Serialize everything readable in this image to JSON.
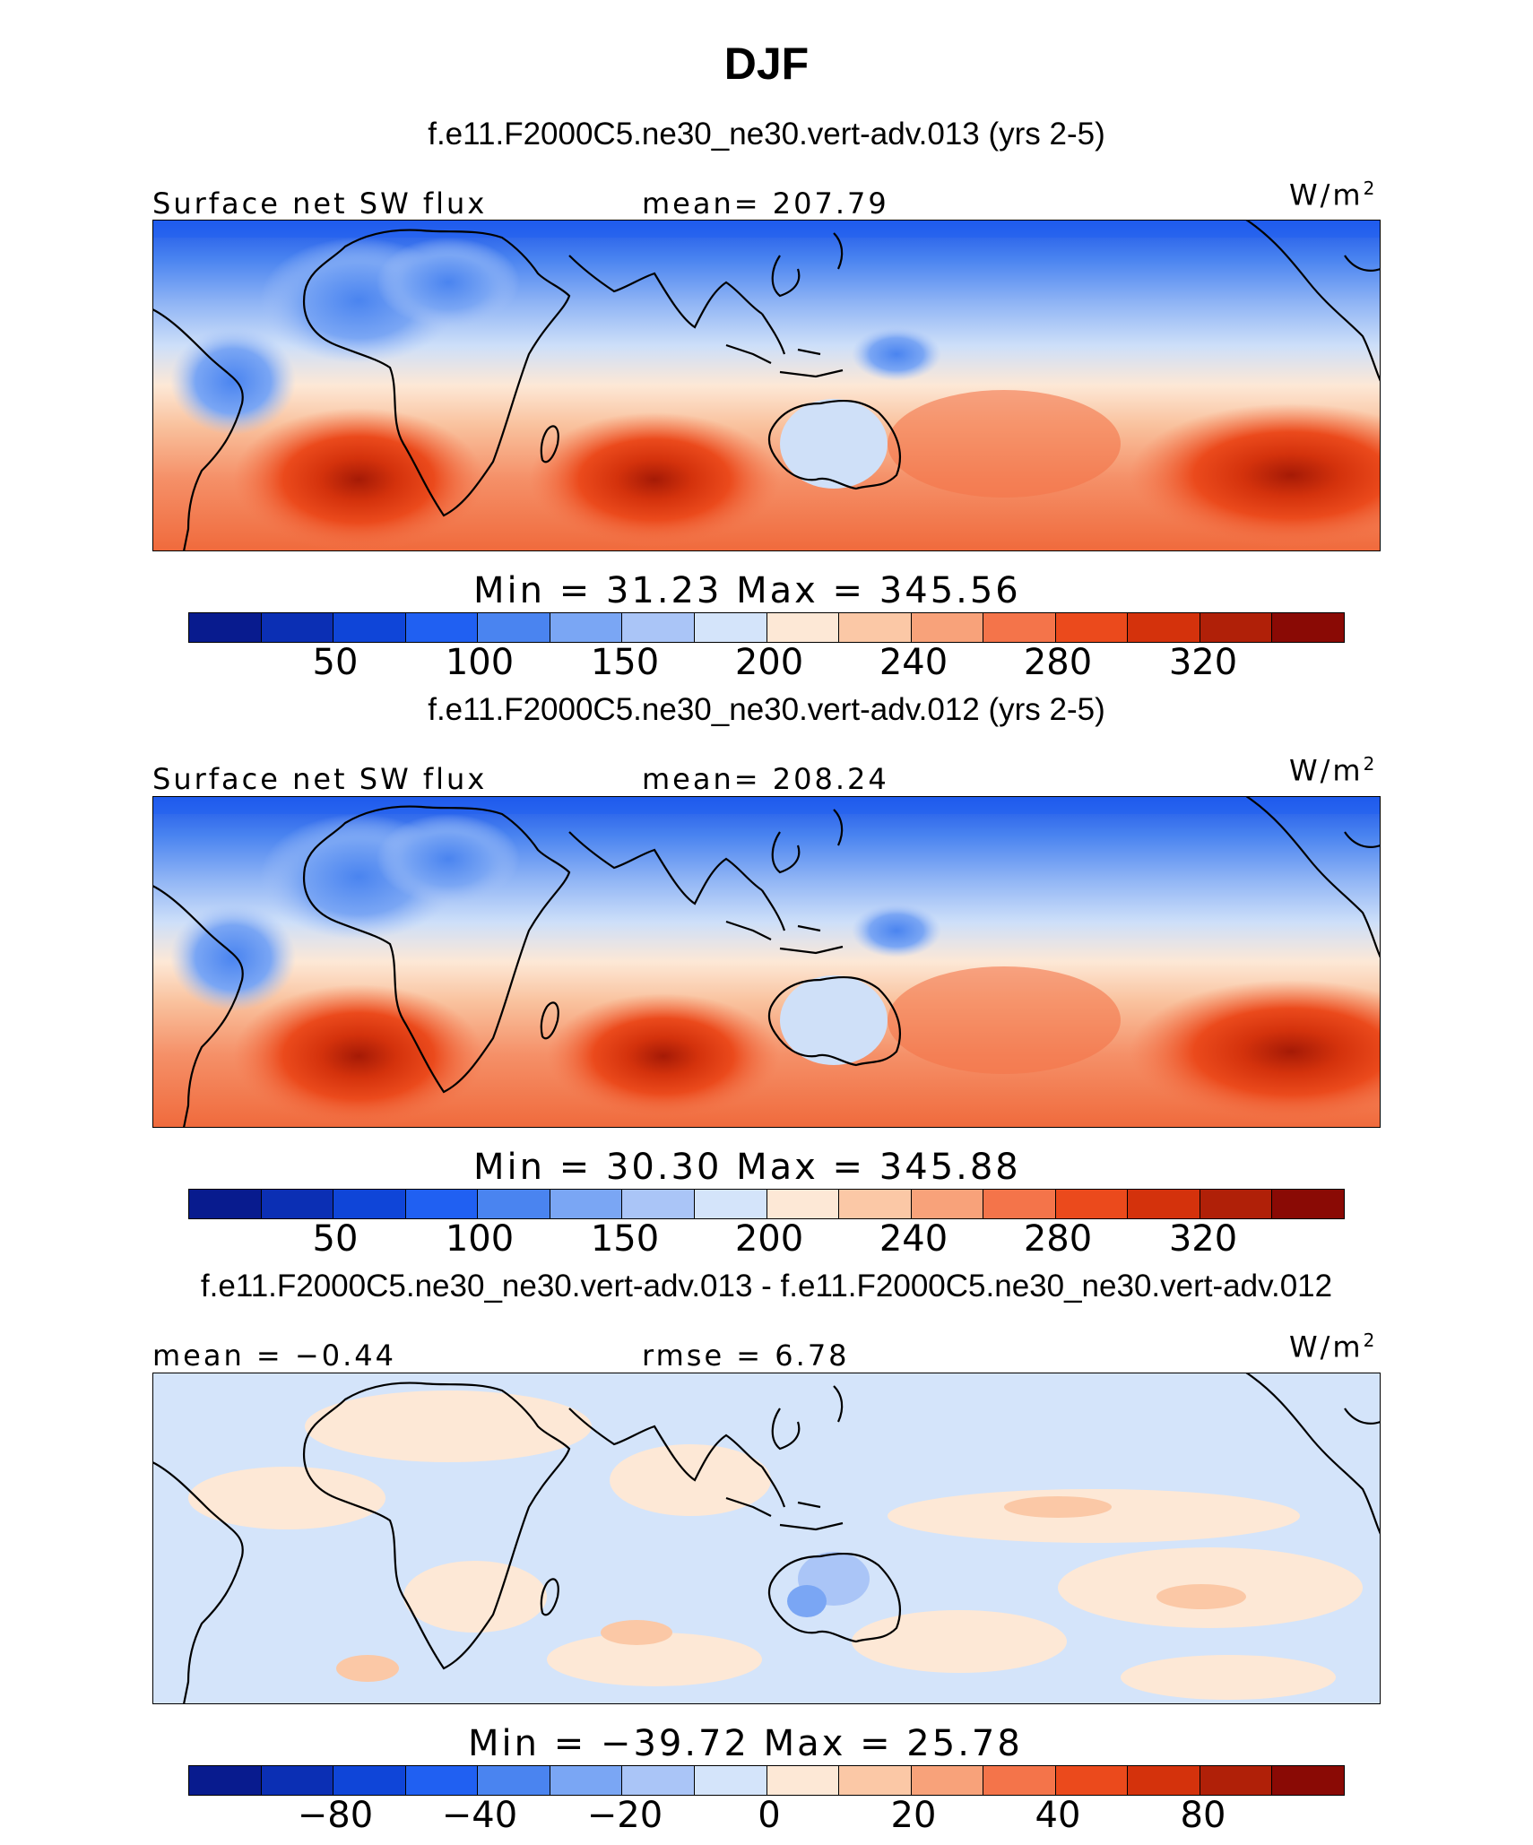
{
  "title": "DJF",
  "panels": [
    {
      "case_title": "f.e11.F2000C5.ne30_ne30.vert-adv.013 (yrs 2-5)",
      "left_label": "Surface net SW flux",
      "center_label": "mean= 207.79",
      "units": "W/m",
      "units_sup": "2",
      "minmax": "Min =   31.23 Max =  345.56",
      "ticks": [
        "50",
        "100",
        "150",
        "200",
        "240",
        "280",
        "320"
      ]
    },
    {
      "case_title": "f.e11.F2000C5.ne30_ne30.vert-adv.012 (yrs 2-5)",
      "left_label": "Surface net SW flux",
      "center_label": "mean= 208.24",
      "units": "W/m",
      "units_sup": "2",
      "minmax": "Min =   30.30 Max =  345.88",
      "ticks": [
        "50",
        "100",
        "150",
        "200",
        "240",
        "280",
        "320"
      ]
    },
    {
      "case_title": "f.e11.F2000C5.ne30_ne30.vert-adv.013 - f.e11.F2000C5.ne30_ne30.vert-adv.012",
      "left_label": "mean =  −0.44",
      "center_label": "rmse =    6.78",
      "units": "W/m",
      "units_sup": "2",
      "minmax": "Min = −39.72 Max =   25.78",
      "ticks": [
        "−80",
        "−40",
        "−20",
        "0",
        "20",
        "40",
        "80"
      ]
    }
  ],
  "colorbar": {
    "colors": [
      "#081b8e",
      "#0b2fb4",
      "#0f45d8",
      "#2060f2",
      "#4a84f0",
      "#7aa6f4",
      "#aac5f7",
      "#d4e4fa",
      "#fde8d6",
      "#fbc8a6",
      "#f8a27a",
      "#f4744a",
      "#eb4a1c",
      "#d4320c",
      "#b02008",
      "#8a0a05"
    ]
  },
  "chart_data": {
    "type": "heatmap",
    "title": "DJF",
    "variable": "Surface net SW flux",
    "units": "W/m2",
    "panels": [
      {
        "case": "f.e11.F2000C5.ne30_ne30.vert-adv.013 (yrs 2-5)",
        "mean": 207.79,
        "min": 31.23,
        "max": 345.56,
        "contour_levels": [
          50,
          100,
          150,
          200,
          240,
          280,
          320
        ]
      },
      {
        "case": "f.e11.F2000C5.ne30_ne30.vert-adv.012 (yrs 2-5)",
        "mean": 208.24,
        "min": 30.3,
        "max": 345.88,
        "contour_levels": [
          50,
          100,
          150,
          200,
          240,
          280,
          320
        ]
      },
      {
        "case": "f.e11.F2000C5.ne30_ne30.vert-adv.013 - f.e11.F2000C5.ne30_ne30.vert-adv.012",
        "mean": -0.44,
        "rmse": 6.78,
        "min": -39.72,
        "max": 25.78,
        "contour_levels": [
          -80,
          -40,
          -20,
          0,
          20,
          40,
          80
        ]
      }
    ]
  }
}
